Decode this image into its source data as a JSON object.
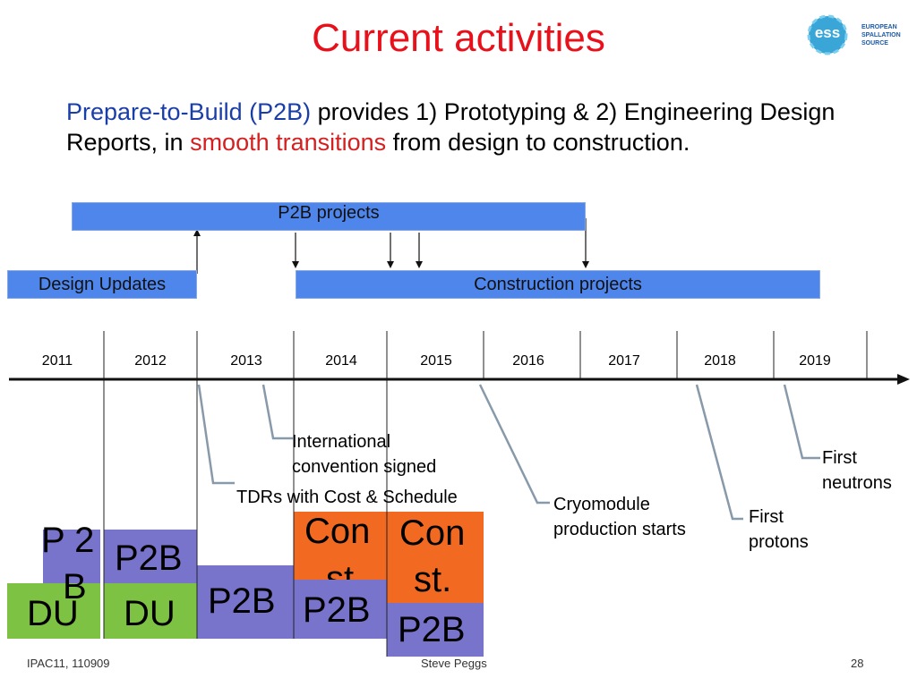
{
  "slide": {
    "title": "Current activities",
    "intro": {
      "p2b_name": "Prepare-to-Build (P2B)",
      "text1": " provides 1) Prototyping & 2) Engineering Design Reports, in ",
      "highlight": "smooth transitions",
      "text2": " from design to construction."
    },
    "bars": {
      "p2b_projects": "P2B projects",
      "design_updates": "Design Updates",
      "construction_projects": "Construction projects"
    },
    "years": [
      "2011",
      "2012",
      "2013",
      "2014",
      "2015",
      "2016",
      "2017",
      "2018",
      "2019"
    ],
    "milestones": {
      "international_line1": "International",
      "international_line2": "convention signed",
      "tdrs": "TDRs with Cost & Schedule",
      "cryo_line1": "Cryomodule",
      "cryo_line2": "production starts",
      "first_protons_line1": "First",
      "first_protons_line2": "protons",
      "first_neutrons_line1": "First",
      "first_neutrons_line2": "neutrons"
    },
    "blocks": {
      "p2_fragment": "P 2",
      "b_fragment": "B",
      "p2b_a": "P2B",
      "du_a": "DU",
      "du_b": "DU",
      "p2b_b": "P2B",
      "p2b_c": "P2B",
      "con_a": "Con",
      "st_a": "st",
      "con_b": "Con",
      "st_b": "st.",
      "p2b_d": "P2B"
    },
    "footer": {
      "left": "IPAC11, 110909",
      "center": "Steve Peggs",
      "page": "28"
    },
    "logo": {
      "mark": "ess",
      "line1": "EUROPEAN",
      "line2": "SPALLATION",
      "line3": "SOURCE"
    },
    "colors": {
      "title": "#e8101a",
      "bar": "#4f86ec",
      "green": "#7dc242",
      "purple": "#7874cc",
      "orange": "#f26a21"
    }
  }
}
